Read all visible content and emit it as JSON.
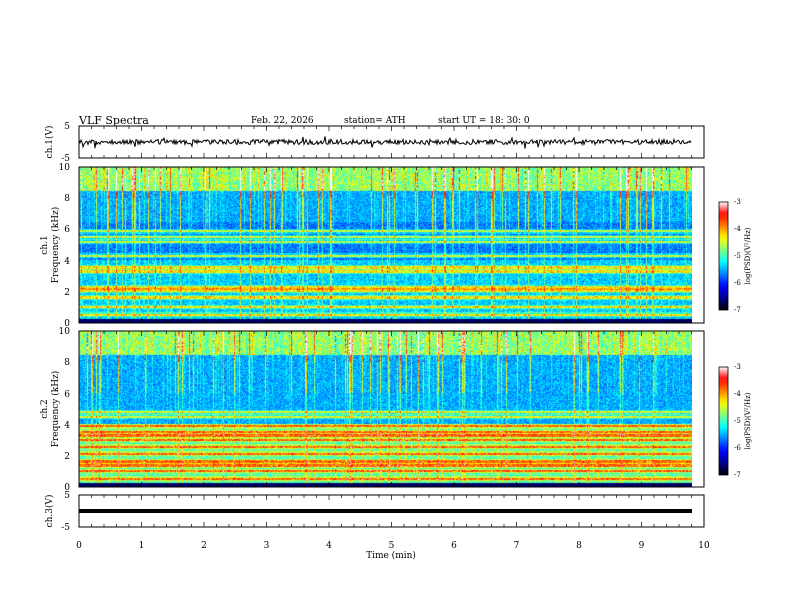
{
  "header": {
    "title": "VLF  Spectra",
    "date": "Feb. 22, 2026",
    "station": "station= ATH",
    "start_ut": "start  UT  =    18: 30: 0"
  },
  "chart_data": {
    "type": "heatmap",
    "x_axis": {
      "label": "Time  (min)",
      "range": [
        0,
        10
      ],
      "ticks": [
        "0",
        "1",
        "2",
        "3",
        "4",
        "5",
        "6",
        "7",
        "8",
        "9",
        "10"
      ],
      "data_end_min": 9.8
    },
    "panels": [
      {
        "kind": "waveform",
        "ylabel": "ch.1(V)",
        "yrange": [
          -5,
          5
        ],
        "ticks": [
          "5",
          "-5"
        ],
        "color": "#000000"
      },
      {
        "kind": "spectrogram",
        "ylabel_line1": "ch.1",
        "ylabel_line2": "Frequency  (kHz)",
        "yrange_khz": [
          0,
          10
        ],
        "ticks": [
          "0",
          "2",
          "4",
          "6",
          "8",
          "10"
        ],
        "strong_bands_khz": [
          0.5,
          1.0,
          1.6,
          2.05,
          2.25,
          3.3,
          3.55,
          4.3,
          5.2,
          5.5,
          5.9
        ],
        "colorbar": {
          "label": "log(PSD)(V²/Hz)",
          "range": [
            -7,
            -3
          ],
          "ticks": [
            "-3",
            "-4",
            "-5",
            "-6",
            "-7"
          ]
        }
      },
      {
        "kind": "spectrogram",
        "ylabel_line1": "ch.2",
        "ylabel_line2": "Frequency  (kHz)",
        "yrange_khz": [
          0,
          10
        ],
        "ticks": [
          "0",
          "2",
          "4",
          "6",
          "8",
          "10"
        ],
        "strong_bands_khz": [
          0.5,
          1.0,
          1.35,
          1.6,
          2.1,
          2.55,
          3.0,
          3.3,
          3.5,
          3.9,
          4.5,
          4.8
        ],
        "colorbar": {
          "label": "log(PSD)(V²/Hz)",
          "range": [
            -7,
            -3
          ],
          "ticks": [
            "-3",
            "-4",
            "-5",
            "-6",
            "-7"
          ]
        }
      },
      {
        "kind": "waveform",
        "ylabel": "ch.3(V)",
        "yrange": [
          -5,
          5
        ],
        "ticks": [
          "5",
          "-5"
        ],
        "color": "#000000"
      }
    ],
    "colormap": [
      "#000000",
      "#00008f",
      "#0000ff",
      "#0080ff",
      "#00ffff",
      "#80ff80",
      "#ffff00",
      "#ff8000",
      "#ff0000",
      "#ffffff"
    ]
  }
}
